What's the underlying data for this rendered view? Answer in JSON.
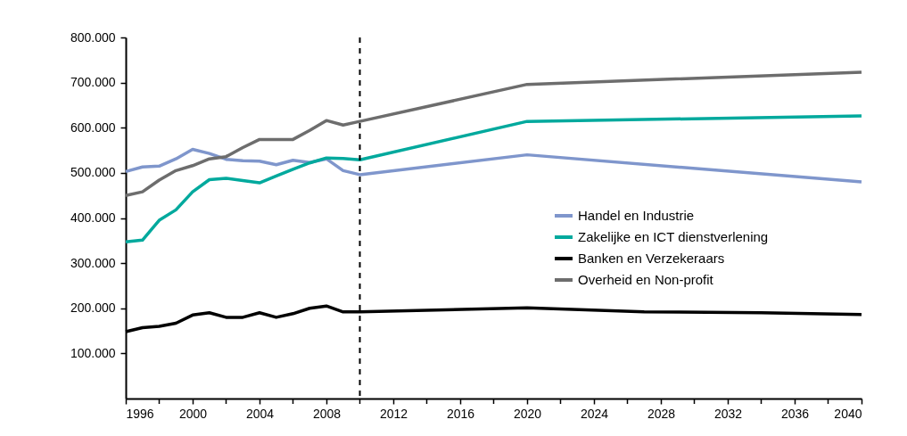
{
  "chart_data": {
    "type": "line",
    "x": [
      1996,
      1997,
      1998,
      1999,
      2000,
      2001,
      2002,
      2003,
      2004,
      2005,
      2006,
      2007,
      2008,
      2009,
      2010,
      2020,
      2040
    ],
    "series": [
      {
        "name": "Handel en Industrie",
        "color": "#7f96cc",
        "values": [
          503000,
          513000,
          515000,
          531000,
          552000,
          543000,
          530000,
          527000,
          526000,
          518000,
          528000,
          523000,
          531000,
          505000,
          496000,
          540000,
          480000
        ]
      },
      {
        "name": "Zakelijke en ICT dienstverlening",
        "color": "#00a99d",
        "values": [
          347000,
          351000,
          395000,
          418000,
          458000,
          485000,
          488000,
          483000,
          478000,
          493000,
          508000,
          522000,
          533000,
          532000,
          529000,
          614000,
          626000
        ]
      },
      {
        "name": "Banken en Verzekeraars",
        "color": "#000000",
        "x": [
          1996,
          1997,
          1998,
          1999,
          2000,
          2001,
          2002,
          2003,
          2004,
          2005,
          2006,
          2007,
          2008,
          2009,
          2010,
          2020,
          2027,
          2034,
          2040
        ],
        "values": [
          148000,
          157000,
          160000,
          167000,
          185000,
          190000,
          180000,
          180000,
          190000,
          180000,
          188000,
          200000,
          205000,
          192000,
          192000,
          201000,
          192000,
          190000,
          186000
        ]
      },
      {
        "name": "Overheid en Non-profit",
        "color": "#6d6d6d",
        "values": [
          450000,
          458000,
          484000,
          505000,
          516000,
          531000,
          536000,
          556000,
          574000,
          574000,
          574000,
          594000,
          616000,
          606000,
          614000,
          696000,
          723000
        ]
      }
    ],
    "xlim": [
      1996,
      2040
    ],
    "xticks": [
      1996,
      {
        "value": 1998,
        "label": null
      },
      2000,
      {
        "value": 2002,
        "label": null
      },
      2004,
      {
        "value": 2006,
        "label": null
      },
      2008,
      {
        "value": 2010,
        "label": null
      },
      2012,
      {
        "value": 2014,
        "label": null
      },
      2016,
      {
        "value": 2018,
        "label": null
      },
      2020,
      {
        "value": 2022,
        "label": null
      },
      2024,
      {
        "value": 2026,
        "label": null
      },
      2028,
      {
        "value": 2030,
        "label": null
      },
      2032,
      {
        "value": 2034,
        "label": null
      },
      2036,
      {
        "value": 2038,
        "label": null
      },
      2040
    ],
    "ylim": [
      0,
      800000
    ],
    "yticks": [
      {
        "value": 100000,
        "label": "100.000"
      },
      {
        "value": 200000,
        "label": "200.000"
      },
      {
        "value": 300000,
        "label": "300.000"
      },
      {
        "value": 400000,
        "label": "400.000"
      },
      {
        "value": 500000,
        "label": "500.000"
      },
      {
        "value": 600000,
        "label": "600.000"
      },
      {
        "value": 700000,
        "label": "700.000"
      },
      {
        "value": 800000,
        "label": "800.000"
      }
    ],
    "ref_lines": [
      {
        "axis": "x",
        "value": 2010,
        "color": "#000000",
        "line_style": "dashed"
      }
    ],
    "legend": "right",
    "grid": false
  }
}
